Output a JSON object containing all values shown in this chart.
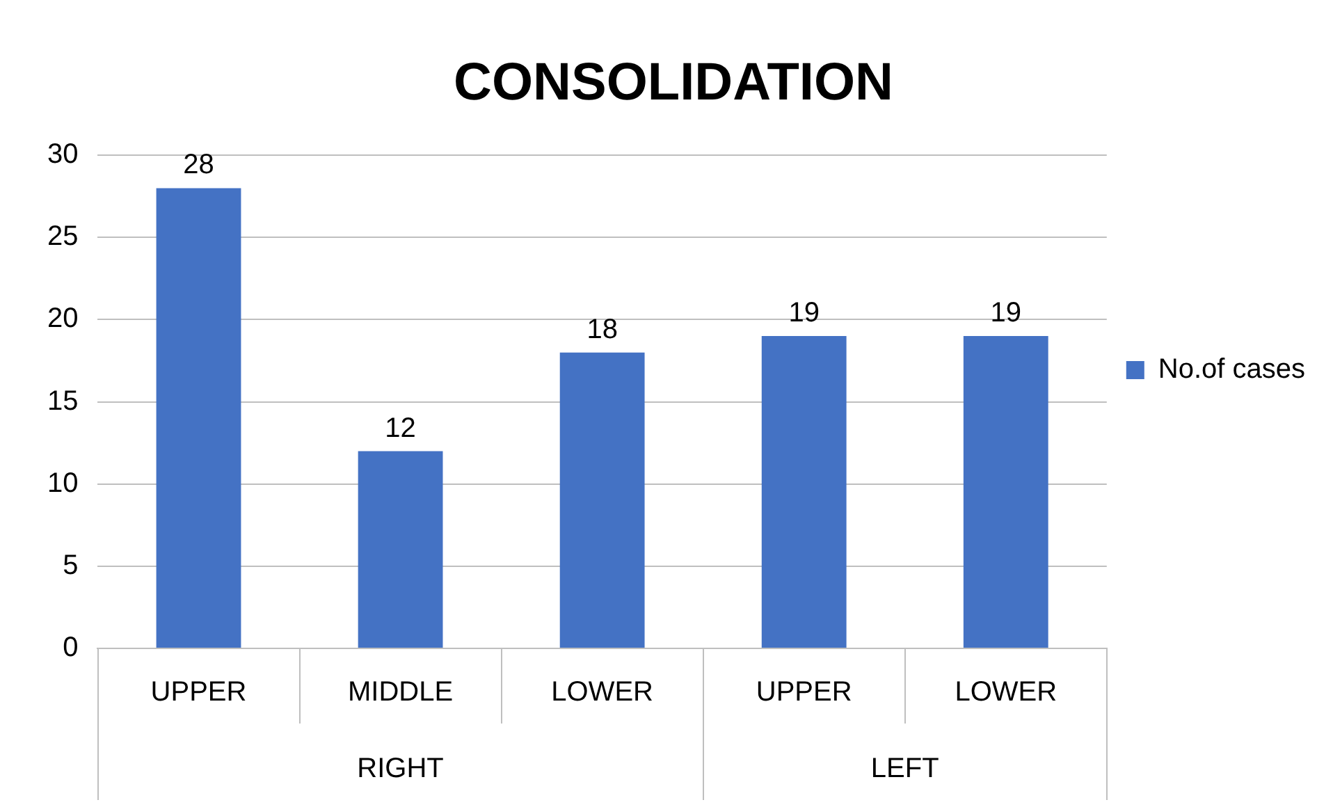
{
  "chart_data": {
    "type": "bar",
    "title": "CONSOLIDATION",
    "categories": [
      "UPPER",
      "MIDDLE",
      "LOWER",
      "UPPER",
      "LOWER"
    ],
    "series": [
      {
        "name": "No.of cases",
        "color": "#4472c4",
        "values": [
          28,
          12,
          18,
          19,
          19
        ]
      }
    ],
    "annotations": [
      "RIGHT",
      "LEFT"
    ],
    "ylim": [
      0,
      30
    ],
    "yticks": [
      0,
      5,
      10,
      15,
      20,
      25,
      30
    ],
    "grid": "y",
    "legend": "right",
    "data_labels": true
  }
}
